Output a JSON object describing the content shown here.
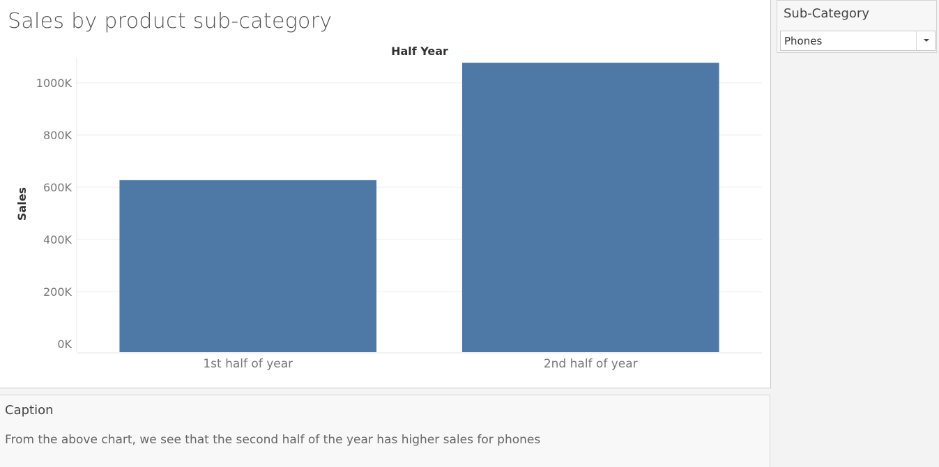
{
  "title": "Sales by product sub-category",
  "chart_data": {
    "type": "bar",
    "title": "Half Year",
    "xlabel": "",
    "ylabel": "Sales",
    "categories": [
      "1st half of year",
      "2nd half of year"
    ],
    "values": [
      627000,
      1077000
    ],
    "ylim": [
      0,
      1100000
    ],
    "yticks": [
      0,
      200000,
      400000,
      600000,
      800000,
      1000000
    ],
    "ytick_labels": [
      "0K",
      "200K",
      "400K",
      "600K",
      "800K",
      "1000K"
    ],
    "grid": true,
    "bar_color": "#4e79a7"
  },
  "filter": {
    "title": "Sub-Category",
    "selected": "Phones"
  },
  "caption": {
    "title": "Caption",
    "text": "From the above chart, we see that the second half of the year has higher sales for phones"
  }
}
